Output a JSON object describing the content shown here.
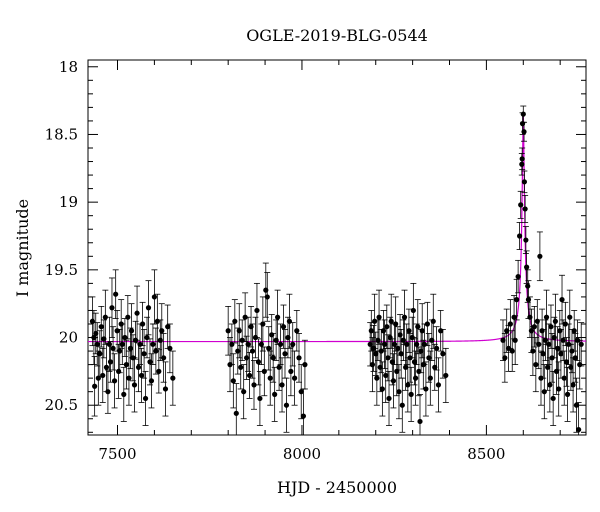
{
  "chart_data": {
    "type": "scatter",
    "title": "OGLE-2019-BLG-0544",
    "xlabel": "HJD - 2450000",
    "ylabel": "I magnitude",
    "xlim": [
      7420,
      8770
    ],
    "ylim": [
      20.72,
      17.95
    ],
    "y_inverted": true,
    "grid": false,
    "x_ticks": [
      7500,
      8000,
      8500
    ],
    "y_ticks": [
      18,
      18.5,
      19,
      19.5,
      20,
      20.5
    ],
    "x_tick_labels": [
      "7500",
      "8000",
      "8500"
    ],
    "y_tick_labels": [
      "18",
      "18.5",
      "19",
      "19.5",
      "20",
      "20.5"
    ],
    "point_color": "#000000",
    "model_color": "#d000d0",
    "model": {
      "baseline_mag": 20.03,
      "peak_mag": 18.35,
      "t0": 8600,
      "width_days": 12
    },
    "points": [
      [
        7432,
        19.88,
        0.18
      ],
      [
        7436,
        20.0,
        0.2
      ],
      [
        7438,
        20.36,
        0.22
      ],
      [
        7441,
        19.97,
        0.15
      ],
      [
        7445,
        20.05,
        0.16
      ],
      [
        7448,
        20.3,
        0.2
      ],
      [
        7452,
        20.12,
        0.17
      ],
      [
        7456,
        19.92,
        0.15
      ],
      [
        7460,
        20.28,
        0.2
      ],
      [
        7463,
        20.01,
        0.14
      ],
      [
        7467,
        19.85,
        0.2
      ],
      [
        7470,
        20.22,
        0.18
      ],
      [
        7474,
        20.4,
        0.16
      ],
      [
        7478,
        20.05,
        0.2
      ],
      [
        7481,
        20.18,
        0.15
      ],
      [
        7485,
        19.78,
        0.22
      ],
      [
        7488,
        20.08,
        0.16
      ],
      [
        7492,
        20.32,
        0.2
      ],
      [
        7495,
        19.68,
        0.18
      ],
      [
        7499,
        19.95,
        0.15
      ],
      [
        7503,
        20.25,
        0.2
      ],
      [
        7506,
        20.1,
        0.16
      ],
      [
        7510,
        19.9,
        0.18
      ],
      [
        7513,
        20.05,
        0.15
      ],
      [
        7517,
        20.42,
        0.2
      ],
      [
        7520,
        20.0,
        0.14
      ],
      [
        7524,
        20.2,
        0.18
      ],
      [
        7528,
        19.85,
        0.16
      ],
      [
        7531,
        20.3,
        0.2
      ],
      [
        7535,
        20.08,
        0.15
      ],
      [
        7538,
        19.95,
        0.2
      ],
      [
        7542,
        20.15,
        0.17
      ],
      [
        7546,
        20.35,
        0.2
      ],
      [
        7549,
        20.02,
        0.14
      ],
      [
        7553,
        19.82,
        0.2
      ],
      [
        7557,
        20.22,
        0.18
      ],
      [
        7561,
        20.05,
        0.15
      ],
      [
        7565,
        20.28,
        0.2
      ],
      [
        7568,
        19.9,
        0.16
      ],
      [
        7572,
        20.12,
        0.18
      ],
      [
        7576,
        20.45,
        0.2
      ],
      [
        7580,
        20.0,
        0.15
      ],
      [
        7584,
        19.78,
        0.2
      ],
      [
        7588,
        20.18,
        0.17
      ],
      [
        7592,
        20.32,
        0.2
      ],
      [
        7596,
        20.05,
        0.15
      ],
      [
        7600,
        19.7,
        0.2
      ],
      [
        7604,
        20.1,
        0.17
      ],
      [
        7608,
        19.88,
        0.2
      ],
      [
        7612,
        20.25,
        0.16
      ],
      [
        7616,
        20.02,
        0.15
      ],
      [
        7620,
        19.95,
        0.2
      ],
      [
        7625,
        20.15,
        0.18
      ],
      [
        7630,
        20.38,
        0.2
      ],
      [
        7636,
        19.92,
        0.16
      ],
      [
        7642,
        20.08,
        0.18
      ],
      [
        7650,
        20.3,
        0.2
      ],
      [
        7800,
        19.95,
        0.18
      ],
      [
        7805,
        20.2,
        0.2
      ],
      [
        7810,
        20.05,
        0.15
      ],
      [
        7814,
        20.32,
        0.2
      ],
      [
        7818,
        19.88,
        0.16
      ],
      [
        7822,
        20.56,
        0.22
      ],
      [
        7826,
        20.1,
        0.17
      ],
      [
        7830,
        19.95,
        0.2
      ],
      [
        7834,
        20.22,
        0.16
      ],
      [
        7838,
        20.02,
        0.15
      ],
      [
        7842,
        20.4,
        0.2
      ],
      [
        7846,
        19.85,
        0.18
      ],
      [
        7850,
        20.15,
        0.16
      ],
      [
        7854,
        20.05,
        0.2
      ],
      [
        7858,
        20.28,
        0.17
      ],
      [
        7862,
        19.92,
        0.15
      ],
      [
        7866,
        20.1,
        0.2
      ],
      [
        7870,
        20.35,
        0.18
      ],
      [
        7874,
        20.0,
        0.15
      ],
      [
        7878,
        19.8,
        0.2
      ],
      [
        7882,
        20.18,
        0.17
      ],
      [
        7886,
        20.45,
        0.2
      ],
      [
        7890,
        20.05,
        0.15
      ],
      [
        7894,
        19.9,
        0.2
      ],
      [
        7898,
        20.25,
        0.18
      ],
      [
        7902,
        19.65,
        0.2
      ],
      [
        7906,
        19.7,
        0.18
      ],
      [
        7910,
        20.08,
        0.16
      ],
      [
        7914,
        20.3,
        0.2
      ],
      [
        7918,
        19.98,
        0.15
      ],
      [
        7922,
        20.15,
        0.18
      ],
      [
        7926,
        20.42,
        0.2
      ],
      [
        7930,
        20.02,
        0.15
      ],
      [
        7934,
        19.85,
        0.2
      ],
      [
        7938,
        20.22,
        0.17
      ],
      [
        7942,
        20.05,
        0.15
      ],
      [
        7946,
        20.35,
        0.2
      ],
      [
        7950,
        19.92,
        0.16
      ],
      [
        7954,
        20.12,
        0.18
      ],
      [
        7958,
        20.5,
        0.2
      ],
      [
        7962,
        20.0,
        0.15
      ],
      [
        7966,
        19.88,
        0.2
      ],
      [
        7970,
        20.25,
        0.18
      ],
      [
        7975,
        20.05,
        0.16
      ],
      [
        7980,
        20.3,
        0.2
      ],
      [
        7986,
        19.95,
        0.15
      ],
      [
        7992,
        20.15,
        0.18
      ],
      [
        7998,
        20.4,
        0.2
      ],
      [
        8004,
        20.58,
        0.2
      ],
      [
        8008,
        20.2,
        0.18
      ],
      [
        8185,
        20.05,
        0.16
      ],
      [
        8188,
        19.95,
        0.15
      ],
      [
        8191,
        20.2,
        0.2
      ],
      [
        8194,
        20.08,
        0.17
      ],
      [
        8197,
        19.88,
        0.2
      ],
      [
        8200,
        20.12,
        0.16
      ],
      [
        8203,
        20.3,
        0.2
      ],
      [
        8206,
        20.02,
        0.15
      ],
      [
        8209,
        19.85,
        0.2
      ],
      [
        8212,
        20.22,
        0.18
      ],
      [
        8215,
        20.1,
        0.16
      ],
      [
        8218,
        20.38,
        0.2
      ],
      [
        8221,
        19.95,
        0.15
      ],
      [
        8224,
        20.05,
        0.18
      ],
      [
        8227,
        20.28,
        0.2
      ],
      [
        8230,
        19.92,
        0.16
      ],
      [
        8233,
        20.15,
        0.17
      ],
      [
        8236,
        20.45,
        0.2
      ],
      [
        8239,
        20.0,
        0.15
      ],
      [
        8242,
        19.88,
        0.2
      ],
      [
        8245,
        20.18,
        0.17
      ],
      [
        8248,
        20.32,
        0.2
      ],
      [
        8251,
        20.05,
        0.15
      ],
      [
        8254,
        19.9,
        0.2
      ],
      [
        8257,
        20.25,
        0.18
      ],
      [
        8260,
        20.08,
        0.16
      ],
      [
        8263,
        20.4,
        0.2
      ],
      [
        8266,
        19.98,
        0.15
      ],
      [
        8269,
        20.12,
        0.18
      ],
      [
        8272,
        20.5,
        0.2
      ],
      [
        8275,
        20.02,
        0.15
      ],
      [
        8278,
        19.85,
        0.2
      ],
      [
        8281,
        20.22,
        0.17
      ],
      [
        8284,
        20.05,
        0.15
      ],
      [
        8287,
        20.35,
        0.2
      ],
      [
        8290,
        19.95,
        0.16
      ],
      [
        8293,
        20.15,
        0.18
      ],
      [
        8296,
        20.42,
        0.2
      ],
      [
        8299,
        20.0,
        0.15
      ],
      [
        8302,
        19.8,
        0.2
      ],
      [
        8305,
        20.18,
        0.17
      ],
      [
        8308,
        20.3,
        0.2
      ],
      [
        8311,
        20.05,
        0.15
      ],
      [
        8314,
        19.92,
        0.2
      ],
      [
        8317,
        20.25,
        0.18
      ],
      [
        8320,
        20.62,
        0.2
      ],
      [
        8323,
        20.1,
        0.16
      ],
      [
        8326,
        19.95,
        0.2
      ],
      [
        8329,
        20.2,
        0.18
      ],
      [
        8332,
        20.05,
        0.15
      ],
      [
        8336,
        20.38,
        0.2
      ],
      [
        8340,
        19.9,
        0.16
      ],
      [
        8344,
        20.15,
        0.18
      ],
      [
        8348,
        20.3,
        0.2
      ],
      [
        8352,
        20.02,
        0.15
      ],
      [
        8356,
        19.88,
        0.2
      ],
      [
        8360,
        20.22,
        0.17
      ],
      [
        8365,
        20.08,
        0.16
      ],
      [
        8370,
        20.35,
        0.2
      ],
      [
        8376,
        19.95,
        0.15
      ],
      [
        8382,
        20.12,
        0.18
      ],
      [
        8390,
        20.28,
        0.2
      ],
      [
        8545,
        20.02,
        0.15
      ],
      [
        8550,
        20.15,
        0.18
      ],
      [
        8555,
        19.95,
        0.16
      ],
      [
        8560,
        20.08,
        0.17
      ],
      [
        8565,
        19.9,
        0.18
      ],
      [
        8570,
        20.1,
        0.15
      ],
      [
        8575,
        19.85,
        0.16
      ],
      [
        8578,
        20.02,
        0.18
      ],
      [
        8582,
        19.72,
        0.15
      ],
      [
        8586,
        19.55,
        0.12
      ],
      [
        8590,
        19.25,
        0.1
      ],
      [
        8593,
        19.02,
        0.1
      ],
      [
        8596,
        18.72,
        0.08
      ],
      [
        8597,
        18.68,
        0.08
      ],
      [
        8598,
        18.42,
        0.08
      ],
      [
        8600,
        18.35,
        0.06
      ],
      [
        8602,
        18.48,
        0.07
      ],
      [
        8603,
        18.85,
        0.08
      ],
      [
        8605,
        19.05,
        0.1
      ],
      [
        8607,
        19.28,
        0.1
      ],
      [
        8609,
        19.48,
        0.12
      ],
      [
        8612,
        19.62,
        0.12
      ],
      [
        8614,
        19.72,
        0.14
      ],
      [
        8618,
        19.85,
        0.15
      ],
      [
        8622,
        19.95,
        0.16
      ],
      [
        8626,
        20.1,
        0.18
      ],
      [
        8630,
        19.92,
        0.15
      ],
      [
        8634,
        20.2,
        0.2
      ],
      [
        8638,
        19.88,
        0.16
      ],
      [
        8642,
        20.05,
        0.18
      ],
      [
        8645,
        19.4,
        0.18
      ],
      [
        8648,
        20.3,
        0.2
      ],
      [
        8651,
        19.95,
        0.16
      ],
      [
        8654,
        20.12,
        0.18
      ],
      [
        8657,
        20.4,
        0.2
      ],
      [
        8660,
        20.02,
        0.15
      ],
      [
        8663,
        19.85,
        0.2
      ],
      [
        8666,
        20.22,
        0.17
      ],
      [
        8669,
        20.05,
        0.15
      ],
      [
        8672,
        20.35,
        0.2
      ],
      [
        8675,
        19.92,
        0.16
      ],
      [
        8678,
        20.15,
        0.18
      ],
      [
        8681,
        20.45,
        0.2
      ],
      [
        8684,
        20.0,
        0.15
      ],
      [
        8687,
        19.88,
        0.2
      ],
      [
        8690,
        20.25,
        0.17
      ],
      [
        8693,
        20.08,
        0.16
      ],
      [
        8696,
        20.38,
        0.2
      ],
      [
        8699,
        19.95,
        0.15
      ],
      [
        8702,
        20.12,
        0.18
      ],
      [
        8705,
        19.72,
        0.18
      ],
      [
        8708,
        20.02,
        0.15
      ],
      [
        8711,
        20.3,
        0.2
      ],
      [
        8714,
        19.9,
        0.16
      ],
      [
        8717,
        20.18,
        0.18
      ],
      [
        8720,
        20.42,
        0.2
      ],
      [
        8723,
        20.05,
        0.15
      ],
      [
        8726,
        19.85,
        0.2
      ],
      [
        8729,
        20.22,
        0.17
      ],
      [
        8732,
        20.1,
        0.16
      ],
      [
        8735,
        20.35,
        0.2
      ],
      [
        8738,
        19.95,
        0.15
      ],
      [
        8741,
        20.15,
        0.18
      ],
      [
        8744,
        20.5,
        0.2
      ],
      [
        8747,
        20.02,
        0.15
      ],
      [
        8750,
        20.68,
        0.2
      ],
      [
        8753,
        20.2,
        0.18
      ],
      [
        8757,
        20.05,
        0.16
      ]
    ]
  }
}
